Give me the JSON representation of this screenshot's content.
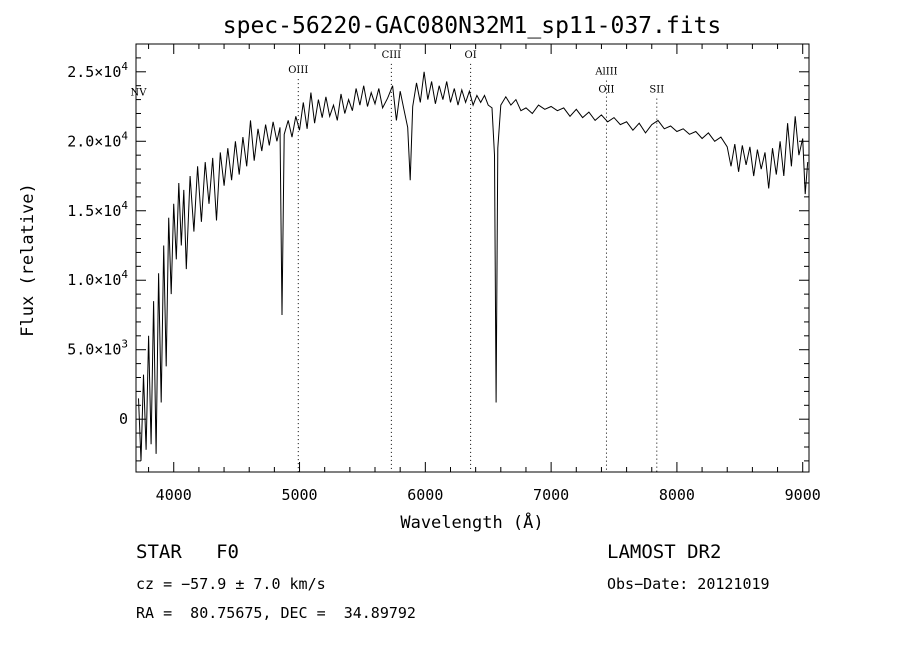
{
  "chart_data": {
    "type": "line",
    "title": "spec-56220-GAC080N32M1_sp11-037.fits",
    "xlabel": "Wavelength (Å)",
    "ylabel": "Flux (relative)",
    "xlim": [
      3700,
      9050
    ],
    "ylim": [
      -3800,
      27000
    ],
    "xticks": [
      {
        "value": 4000,
        "label": "4000"
      },
      {
        "value": 5000,
        "label": "5000"
      },
      {
        "value": 6000,
        "label": "6000"
      },
      {
        "value": 7000,
        "label": "7000"
      },
      {
        "value": 8000,
        "label": "8000"
      },
      {
        "value": 9000,
        "label": "9000"
      }
    ],
    "yticks": [
      {
        "value": 0,
        "mant": "0",
        "exp": ""
      },
      {
        "value": 5000,
        "mant": "5.0×10",
        "exp": "3"
      },
      {
        "value": 10000,
        "mant": "1.0×10",
        "exp": "4"
      },
      {
        "value": 15000,
        "mant": "1.5×10",
        "exp": "4"
      },
      {
        "value": 20000,
        "mant": "2.0×10",
        "exp": "4"
      },
      {
        "value": 25000,
        "mant": "2.5×10",
        "exp": "4"
      }
    ],
    "line_color": "#000000",
    "grid": false,
    "spectral_lines": [
      {
        "name": "NV",
        "wavelength": 3720,
        "flux_at_label": 23300,
        "dotted": false
      },
      {
        "name": "OIII",
        "wavelength": 4990,
        "flux_at_label": 24900,
        "dotted": true
      },
      {
        "name": "CIII",
        "wavelength": 5730,
        "flux_at_label": 26000,
        "dotted": true
      },
      {
        "name": "OI",
        "wavelength": 6360,
        "flux_at_label": 26000,
        "dotted": true
      },
      {
        "name": "AlIII",
        "wavelength": 7440,
        "flux_at_label": 24800,
        "dotted": true
      },
      {
        "name": "OII",
        "wavelength": 7440,
        "flux_at_label": 23500,
        "dotted": false
      },
      {
        "name": "SII",
        "wavelength": 7840,
        "flux_at_label": 23500,
        "dotted": true
      }
    ],
    "series": [
      {
        "points": [
          [
            3720,
            1500
          ],
          [
            3740,
            -3000
          ],
          [
            3760,
            3200
          ],
          [
            3780,
            -2200
          ],
          [
            3800,
            6000
          ],
          [
            3820,
            -1800
          ],
          [
            3840,
            8500
          ],
          [
            3860,
            -2500
          ],
          [
            3880,
            10500
          ],
          [
            3900,
            1200
          ],
          [
            3920,
            12500
          ],
          [
            3940,
            3800
          ],
          [
            3960,
            14500
          ],
          [
            3980,
            9000
          ],
          [
            4000,
            15500
          ],
          [
            4020,
            11500
          ],
          [
            4040,
            17000
          ],
          [
            4060,
            12500
          ],
          [
            4080,
            16500
          ],
          [
            4100,
            10800
          ],
          [
            4130,
            17500
          ],
          [
            4160,
            13500
          ],
          [
            4190,
            18200
          ],
          [
            4220,
            14200
          ],
          [
            4250,
            18500
          ],
          [
            4280,
            15500
          ],
          [
            4310,
            18800
          ],
          [
            4340,
            14300
          ],
          [
            4370,
            19200
          ],
          [
            4400,
            16800
          ],
          [
            4430,
            19500
          ],
          [
            4460,
            17200
          ],
          [
            4490,
            20000
          ],
          [
            4520,
            17600
          ],
          [
            4550,
            20300
          ],
          [
            4580,
            18200
          ],
          [
            4610,
            21500
          ],
          [
            4640,
            18600
          ],
          [
            4670,
            20900
          ],
          [
            4700,
            19300
          ],
          [
            4730,
            21200
          ],
          [
            4760,
            19700
          ],
          [
            4790,
            21400
          ],
          [
            4820,
            20000
          ],
          [
            4845,
            21000
          ],
          [
            4861,
            7500
          ],
          [
            4878,
            20500
          ],
          [
            4910,
            21500
          ],
          [
            4940,
            20300
          ],
          [
            4970,
            21800
          ],
          [
            5000,
            20800
          ],
          [
            5030,
            22800
          ],
          [
            5060,
            20900
          ],
          [
            5090,
            23500
          ],
          [
            5120,
            21300
          ],
          [
            5150,
            23000
          ],
          [
            5180,
            21700
          ],
          [
            5210,
            23200
          ],
          [
            5240,
            21800
          ],
          [
            5270,
            22600
          ],
          [
            5300,
            21500
          ],
          [
            5330,
            23400
          ],
          [
            5360,
            22000
          ],
          [
            5390,
            23000
          ],
          [
            5420,
            22200
          ],
          [
            5450,
            23800
          ],
          [
            5480,
            22600
          ],
          [
            5510,
            24000
          ],
          [
            5540,
            22500
          ],
          [
            5570,
            23500
          ],
          [
            5600,
            22700
          ],
          [
            5630,
            23800
          ],
          [
            5660,
            22400
          ],
          [
            5700,
            23100
          ],
          [
            5740,
            24000
          ],
          [
            5770,
            21500
          ],
          [
            5800,
            23600
          ],
          [
            5830,
            22300
          ],
          [
            5860,
            21000
          ],
          [
            5880,
            17200
          ],
          [
            5900,
            22500
          ],
          [
            5930,
            24200
          ],
          [
            5960,
            22800
          ],
          [
            5990,
            25000
          ],
          [
            6020,
            23000
          ],
          [
            6050,
            24300
          ],
          [
            6080,
            22700
          ],
          [
            6110,
            24000
          ],
          [
            6140,
            23000
          ],
          [
            6170,
            24300
          ],
          [
            6200,
            22800
          ],
          [
            6230,
            23800
          ],
          [
            6260,
            22600
          ],
          [
            6290,
            23700
          ],
          [
            6320,
            22800
          ],
          [
            6350,
            23600
          ],
          [
            6380,
            22600
          ],
          [
            6410,
            23300
          ],
          [
            6440,
            22800
          ],
          [
            6470,
            23300
          ],
          [
            6500,
            22600
          ],
          [
            6530,
            22400
          ],
          [
            6550,
            19000
          ],
          [
            6563,
            1200
          ],
          [
            6576,
            19500
          ],
          [
            6600,
            22600
          ],
          [
            6640,
            23200
          ],
          [
            6680,
            22600
          ],
          [
            6720,
            23000
          ],
          [
            6760,
            22200
          ],
          [
            6800,
            22400
          ],
          [
            6850,
            22000
          ],
          [
            6900,
            22600
          ],
          [
            6950,
            22300
          ],
          [
            7000,
            22500
          ],
          [
            7050,
            22200
          ],
          [
            7100,
            22400
          ],
          [
            7150,
            21800
          ],
          [
            7200,
            22300
          ],
          [
            7250,
            21700
          ],
          [
            7300,
            22100
          ],
          [
            7350,
            21500
          ],
          [
            7400,
            21900
          ],
          [
            7450,
            21400
          ],
          [
            7500,
            21700
          ],
          [
            7550,
            21200
          ],
          [
            7600,
            21400
          ],
          [
            7650,
            20800
          ],
          [
            7700,
            21300
          ],
          [
            7750,
            20600
          ],
          [
            7800,
            21200
          ],
          [
            7850,
            21500
          ],
          [
            7900,
            20900
          ],
          [
            7950,
            21100
          ],
          [
            8000,
            20700
          ],
          [
            8050,
            20900
          ],
          [
            8100,
            20500
          ],
          [
            8150,
            20700
          ],
          [
            8200,
            20200
          ],
          [
            8250,
            20600
          ],
          [
            8300,
            20000
          ],
          [
            8350,
            20300
          ],
          [
            8400,
            19600
          ],
          [
            8430,
            18200
          ],
          [
            8460,
            19800
          ],
          [
            8490,
            17800
          ],
          [
            8520,
            19700
          ],
          [
            8550,
            18300
          ],
          [
            8580,
            19600
          ],
          [
            8610,
            17500
          ],
          [
            8640,
            19400
          ],
          [
            8670,
            18000
          ],
          [
            8700,
            19200
          ],
          [
            8730,
            16600
          ],
          [
            8760,
            19500
          ],
          [
            8790,
            17600
          ],
          [
            8820,
            20000
          ],
          [
            8850,
            17500
          ],
          [
            8880,
            21300
          ],
          [
            8910,
            18200
          ],
          [
            8940,
            21800
          ],
          [
            8970,
            19000
          ],
          [
            9000,
            20200
          ],
          [
            9020,
            16200
          ],
          [
            9040,
            18500
          ]
        ]
      }
    ]
  },
  "info": {
    "class": "STAR   F0",
    "survey": "LAMOST DR2",
    "cz": "cz = −57.9 ± 7.0 km/s",
    "obsdate": "Obs−Date: 20121019",
    "radec": "RA =  80.75675, DEC =  34.89792"
  }
}
